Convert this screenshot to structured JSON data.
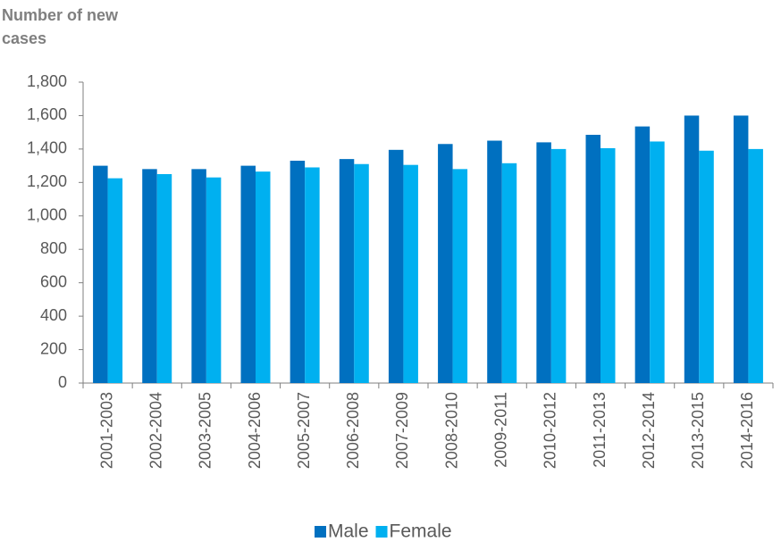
{
  "chart_data": {
    "type": "bar",
    "y_label": "Number of new cases",
    "categories": [
      "2001-2003",
      "2002-2004",
      "2003-2005",
      "2004-2006",
      "2005-2007",
      "2006-2008",
      "2007-2009",
      "2008-2010",
      "2009-2011",
      "2010-2012",
      "2011-2013",
      "2012-2014",
      "2013-2015",
      "2014-2016"
    ],
    "series": [
      {
        "name": "Male",
        "color": "#0070c0",
        "values": [
          1300,
          1280,
          1280,
          1300,
          1330,
          1340,
          1395,
          1430,
          1450,
          1440,
          1485,
          1535,
          1600,
          1600
        ]
      },
      {
        "name": "Female",
        "color": "#00b0f0",
        "values": [
          1225,
          1250,
          1230,
          1265,
          1290,
          1310,
          1305,
          1280,
          1315,
          1400,
          1405,
          1445,
          1390,
          1400
        ]
      }
    ],
    "ylim": [
      0,
      1800
    ],
    "yticks": [
      0,
      200,
      400,
      600,
      800,
      {
        "value": 1000,
        "label": "1,000"
      },
      {
        "value": 1200,
        "label": "1,200"
      },
      {
        "value": 1400,
        "label": "1,400"
      },
      {
        "value": 1600,
        "label": "1,600"
      },
      {
        "value": 1800,
        "label": "1,800"
      }
    ],
    "grid": false,
    "legend": "bottom"
  }
}
